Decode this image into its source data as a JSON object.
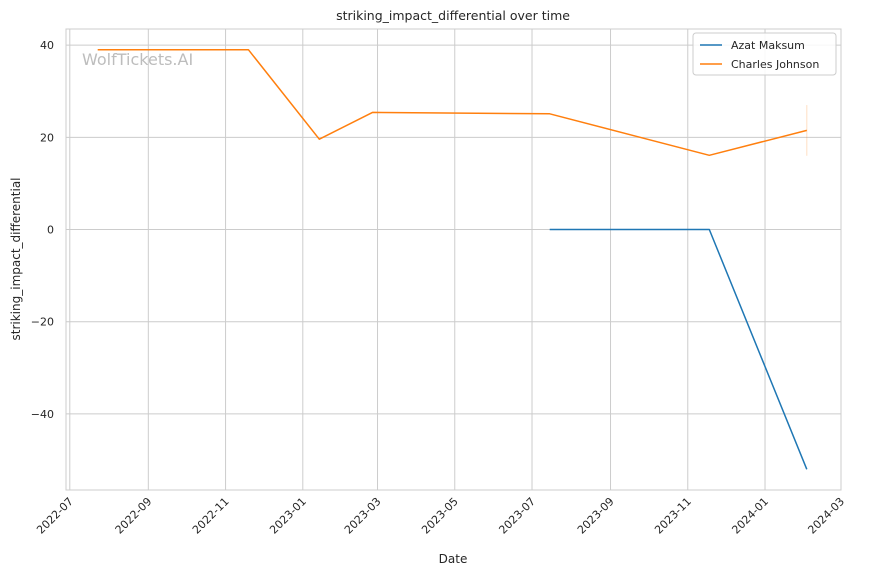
{
  "chart_data": {
    "type": "line",
    "title": "striking_impact_differential over time",
    "xlabel": "Date",
    "ylabel": "striking_impact_differential",
    "watermark": "WolfTickets.AI",
    "x_ticks": [
      "2022-07",
      "2022-09",
      "2022-11",
      "2023-01",
      "2023-03",
      "2023-05",
      "2023-07",
      "2023-09",
      "2023-11",
      "2024-01",
      "2024-03"
    ],
    "y_ticks": [
      -40,
      -20,
      0,
      20,
      40
    ],
    "xlim": [
      "2022-06-28",
      "2024-03-01"
    ],
    "ylim": [
      -56.5,
      43.5
    ],
    "grid": true,
    "legend_position": "top-right",
    "series": [
      {
        "name": "Azat Maksum",
        "color": "#1f77b4",
        "x": [
          "2023-07-15",
          "2023-11-18",
          "2024-02-03"
        ],
        "y": [
          0,
          0,
          -52
        ]
      },
      {
        "name": "Charles Johnson",
        "color": "#ff7f0e",
        "x": [
          "2022-07-23",
          "2022-11-19",
          "2023-01-14",
          "2023-02-25",
          "2023-07-15",
          "2023-11-18",
          "2024-02-03"
        ],
        "y": [
          39,
          39,
          19.6,
          25.4,
          25.1,
          16.1,
          21.5
        ]
      }
    ]
  }
}
